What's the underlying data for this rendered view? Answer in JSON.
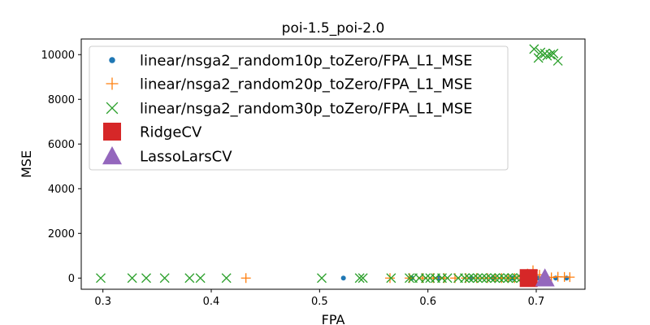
{
  "chart_data": {
    "type": "scatter",
    "title": "poi-1.5_poi-2.0",
    "xlabel": "FPA",
    "ylabel": "MSE",
    "xlim": [
      0.28,
      0.745
    ],
    "ylim": [
      -500,
      10700
    ],
    "xticks": [
      "0.3",
      "0.4",
      "0.5",
      "0.6",
      "0.7"
    ],
    "xtick_values": [
      0.3,
      0.4,
      0.5,
      0.6,
      0.7
    ],
    "yticks": [
      "0",
      "2000",
      "4000",
      "6000",
      "8000",
      "10000"
    ],
    "ytick_values": [
      0,
      2000,
      4000,
      6000,
      8000,
      10000
    ],
    "grid": false,
    "legend_placement": "upper-left",
    "series": [
      {
        "name": "linear/nsga2_random10p_toZero/FPA_L1_MSE",
        "marker": "dot",
        "color": "#1f77b4",
        "points": [
          [
            0.522,
            0
          ],
          [
            0.585,
            0
          ],
          [
            0.61,
            0
          ],
          [
            0.64,
            0
          ],
          [
            0.66,
            0
          ],
          [
            0.678,
            0
          ],
          [
            0.69,
            0
          ],
          [
            0.702,
            0
          ],
          [
            0.718,
            0
          ],
          [
            0.728,
            0
          ]
        ]
      },
      {
        "name": "linear/nsga2_random20p_toZero/FPA_L1_MSE",
        "marker": "plus",
        "color": "#ff7f0e",
        "points": [
          [
            0.432,
            0
          ],
          [
            0.565,
            0
          ],
          [
            0.583,
            0
          ],
          [
            0.595,
            0
          ],
          [
            0.605,
            0
          ],
          [
            0.615,
            0
          ],
          [
            0.625,
            0
          ],
          [
            0.635,
            0
          ],
          [
            0.645,
            0
          ],
          [
            0.655,
            0
          ],
          [
            0.662,
            0
          ],
          [
            0.668,
            0
          ],
          [
            0.674,
            0
          ],
          [
            0.68,
            0
          ],
          [
            0.686,
            80
          ],
          [
            0.692,
            200
          ],
          [
            0.697,
            350
          ],
          [
            0.703,
            150
          ],
          [
            0.708,
            60
          ],
          [
            0.714,
            30
          ],
          [
            0.72,
            60
          ],
          [
            0.726,
            50
          ],
          [
            0.731,
            40
          ]
        ]
      },
      {
        "name": "linear/nsga2_random30p_toZero/FPA_L1_MSE",
        "marker": "x",
        "color": "#2ca02c",
        "points": [
          [
            0.298,
            0
          ],
          [
            0.327,
            0
          ],
          [
            0.34,
            0
          ],
          [
            0.357,
            0
          ],
          [
            0.38,
            0
          ],
          [
            0.39,
            0
          ],
          [
            0.414,
            0
          ],
          [
            0.502,
            0
          ],
          [
            0.537,
            0
          ],
          [
            0.54,
            0
          ],
          [
            0.566,
            0
          ],
          [
            0.583,
            0
          ],
          [
            0.586,
            0
          ],
          [
            0.592,
            0
          ],
          [
            0.598,
            0
          ],
          [
            0.602,
            0
          ],
          [
            0.607,
            0
          ],
          [
            0.613,
            0
          ],
          [
            0.618,
            0
          ],
          [
            0.628,
            0
          ],
          [
            0.634,
            0
          ],
          [
            0.638,
            0
          ],
          [
            0.642,
            0
          ],
          [
            0.646,
            0
          ],
          [
            0.65,
            0
          ],
          [
            0.654,
            0
          ],
          [
            0.658,
            0
          ],
          [
            0.662,
            0
          ],
          [
            0.666,
            0
          ],
          [
            0.67,
            0
          ],
          [
            0.674,
            0
          ],
          [
            0.678,
            0
          ],
          [
            0.682,
            0
          ],
          [
            0.686,
            0
          ],
          [
            0.698,
            10250
          ],
          [
            0.702,
            9850
          ],
          [
            0.704,
            10100
          ],
          [
            0.708,
            10050
          ],
          [
            0.71,
            9950
          ],
          [
            0.713,
            10000
          ],
          [
            0.716,
            10050
          ],
          [
            0.72,
            9720
          ]
        ]
      },
      {
        "name": "RidgeCV",
        "marker": "square",
        "color": "#d62728",
        "points": [
          [
            0.693,
            0
          ]
        ]
      },
      {
        "name": "LassoLarsCV",
        "marker": "triangle",
        "color": "#9467bd",
        "points": [
          [
            0.708,
            0
          ]
        ]
      }
    ]
  }
}
